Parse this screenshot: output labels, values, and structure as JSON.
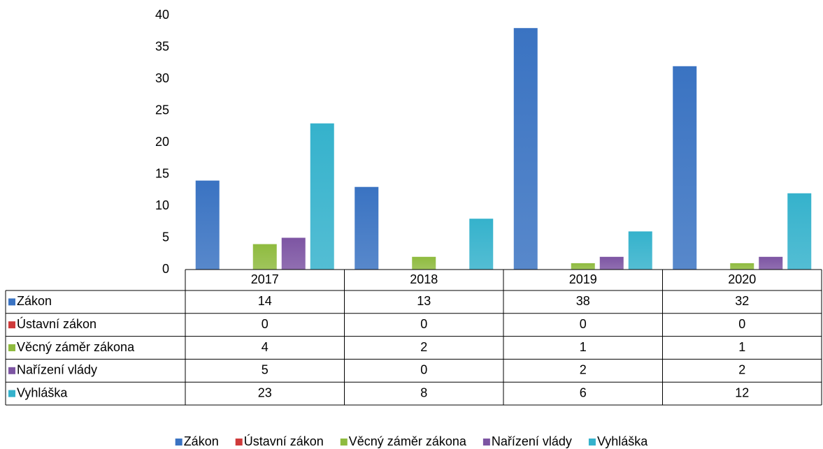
{
  "chart_data": {
    "type": "bar",
    "categories": [
      "2017",
      "2018",
      "2019",
      "2020"
    ],
    "series": [
      {
        "name": "Zákon",
        "color": "#3a73c2",
        "values": [
          14,
          13,
          38,
          32
        ]
      },
      {
        "name": "Ústavní zákon",
        "color": "#cf3a3a",
        "values": [
          0,
          0,
          0,
          0
        ]
      },
      {
        "name": "Věcný záměr zákona",
        "color": "#8fbb3f",
        "values": [
          4,
          2,
          1,
          1
        ]
      },
      {
        "name": "Nařízení vlády",
        "color": "#7d55a3",
        "values": [
          5,
          0,
          2,
          2
        ]
      },
      {
        "name": "Vyhláška",
        "color": "#35b2cc",
        "values": [
          23,
          8,
          6,
          12
        ]
      }
    ],
    "ylim": [
      0,
      40
    ],
    "yticks": [
      0,
      5,
      10,
      15,
      20,
      25,
      30,
      35,
      40
    ],
    "grid": false,
    "legend": "bottom",
    "data_table": true
  }
}
